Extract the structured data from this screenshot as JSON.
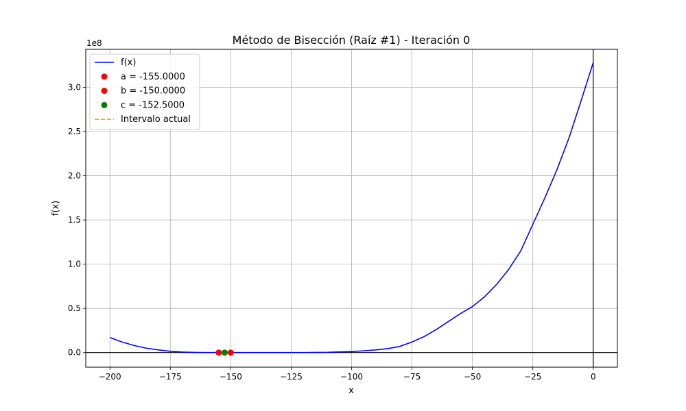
{
  "chart_data": {
    "type": "line",
    "title": "Método de Bisección (Raíz #1) - Iteración 0",
    "xlabel": "x",
    "ylabel": "f(x)",
    "y_scale_label": "1e8",
    "xlim": [
      -210,
      10
    ],
    "ylim": [
      -0.165,
      3.43
    ],
    "grid": true,
    "legend_position": "top-left",
    "x_ticks": [
      -200,
      -175,
      -150,
      -125,
      -100,
      -75,
      -50,
      -25,
      0
    ],
    "x_tick_labels": [
      "−200",
      "−175",
      "−150",
      "−125",
      "−100",
      "−75",
      "−50",
      "−25",
      "0"
    ],
    "y_ticks": [
      0.0,
      0.5,
      1.0,
      1.5,
      2.0,
      2.5,
      3.0
    ],
    "y_tick_labels": [
      "0.0",
      "0.5",
      "1.0",
      "1.5",
      "2.0",
      "2.5",
      "3.0"
    ],
    "reference_lines": {
      "x": 0,
      "y": 0
    },
    "series": [
      {
        "name": "f(x)",
        "kind": "line",
        "color": "#0000ff",
        "x": [
          -200,
          -195,
          -190,
          -185,
          -180,
          -175,
          -170,
          -165,
          -160,
          -155,
          -150,
          -145,
          -140,
          -130,
          -120,
          -110,
          -100,
          -95,
          -90,
          -85,
          -80,
          -75,
          -70,
          -65,
          -60,
          -55,
          -50,
          -45,
          -40,
          -35,
          -30,
          -25,
          -20,
          -15,
          -10,
          -5,
          0
        ],
        "y": [
          0.17,
          0.12,
          0.08,
          0.05,
          0.03,
          0.015,
          0.006,
          0.002,
          0.0004,
          0.0,
          0.0,
          0.0,
          0.0,
          0.0,
          0.0,
          0.003,
          0.012,
          0.02,
          0.03,
          0.045,
          0.07,
          0.12,
          0.18,
          0.26,
          0.35,
          0.44,
          0.52,
          0.63,
          0.77,
          0.94,
          1.15,
          1.45,
          1.75,
          2.07,
          2.43,
          2.85,
          3.28
        ]
      },
      {
        "name": "a = -155.0000",
        "kind": "point",
        "color": "#ff0000",
        "x": [
          -155.0
        ],
        "y": [
          0
        ]
      },
      {
        "name": "b = -150.0000",
        "kind": "point",
        "color": "#ff0000",
        "x": [
          -150.0
        ],
        "y": [
          0
        ]
      },
      {
        "name": "c = -152.5000",
        "kind": "point",
        "color": "#008000",
        "x": [
          -152.5
        ],
        "y": [
          0
        ]
      },
      {
        "name": "Intervalo actual",
        "kind": "dashed",
        "color": "#ffa500",
        "x": [
          -155.0,
          -150.0
        ],
        "y": [
          0,
          0
        ]
      }
    ]
  }
}
